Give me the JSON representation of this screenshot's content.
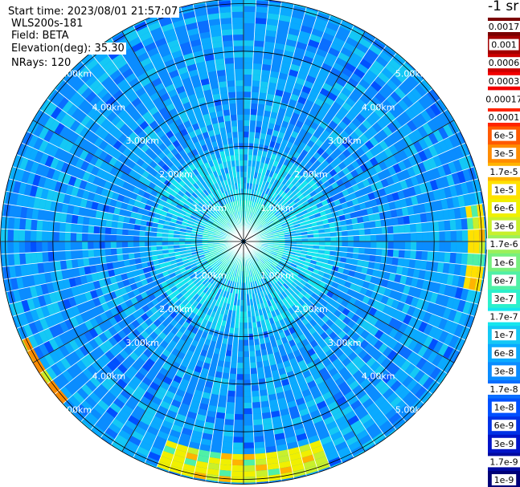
{
  "header": {
    "start_time": "Start time: 2023/08/01 21:57:07",
    "system": "WLS200s-181",
    "field": "Field: BETA",
    "elevation": "Elevation(deg): 35.30",
    "nrays": "NRays: 120"
  },
  "colorbar": {
    "title": "-1 sr",
    "entries": [
      {
        "label": "0.0017",
        "color": "#7a0000"
      },
      {
        "label": "0.001",
        "color": "#a30000"
      },
      {
        "label": "0.0006",
        "color": "#cc0000"
      },
      {
        "label": "0.0003",
        "color": "#f20000"
      },
      {
        "label": "0.00017",
        "color": "#ffffff"
      },
      {
        "label": "0.0001",
        "color": "#ff2400"
      },
      {
        "label": "6e-5",
        "color": "#ff5a00"
      },
      {
        "label": "3e-5",
        "color": "#ff8c00"
      },
      {
        "label": "1.7e-5",
        "color": "#ffb400"
      },
      {
        "label": "1e-5",
        "color": "#ffe100"
      },
      {
        "label": "6e-6",
        "color": "#f0f000"
      },
      {
        "label": "3e-6",
        "color": "#c8f02c"
      },
      {
        "label": "1.7e-6",
        "color": "#9cf05a"
      },
      {
        "label": "1e-6",
        "color": "#78f07e"
      },
      {
        "label": "6e-7",
        "color": "#50f0a6"
      },
      {
        "label": "3e-7",
        "color": "#2cf0cc"
      },
      {
        "label": "1.7e-7",
        "color": "#14e6ee"
      },
      {
        "label": "1e-7",
        "color": "#14c8f5"
      },
      {
        "label": "6e-8",
        "color": "#0aaaff"
      },
      {
        "label": "3e-8",
        "color": "#0a8cff"
      },
      {
        "label": "1.7e-8",
        "color": "#0a6eff"
      },
      {
        "label": "1e-8",
        "color": "#0050ff"
      },
      {
        "label": "6e-9",
        "color": "#0032e6"
      },
      {
        "label": "3e-9",
        "color": "#0014c8"
      },
      {
        "label": "1.7e-9",
        "color": "#000aa0"
      },
      {
        "label": "1e-9",
        "color": "#000078"
      }
    ]
  },
  "chart_data": {
    "type": "heatmap",
    "projection": "polar-ppi",
    "nrays": 120,
    "range_labels": [
      "1.00km",
      "2.00km",
      "3.00km",
      "4.00km",
      "5.00km"
    ],
    "range_label_bearings_deg": [
      -45,
      45,
      135,
      225
    ],
    "data_note_levels": "dominant backscatter level by range: near field ~1e-7 to 3e-7, mid/outer field ~3e-8 to 6e-8 with scattered 1e-8 patches; enhanced returns 3e-6 to 3e-5 near outer edge toward east (bearing ~80-100 deg), south (bearing ~165-195 deg) and southwest edge (bearing ~230-245 deg)",
    "hotspots": [
      {
        "bearing_deg_from": 80,
        "bearing_deg_to": 102,
        "range_km_from": 4.7,
        "range_km_to": 5.1,
        "level": "1e-5"
      },
      {
        "bearing_deg_from": 160,
        "bearing_deg_to": 200,
        "range_km_from": 4.45,
        "range_km_to": 5.1,
        "level": "6e-6"
      },
      {
        "bearing_deg_from": 228,
        "bearing_deg_to": 246,
        "range_km_from": 4.95,
        "range_km_to": 5.15,
        "level": "3e-5"
      }
    ],
    "colors": {
      "grid": "#000000",
      "ray_separator": "#ffffff"
    }
  }
}
